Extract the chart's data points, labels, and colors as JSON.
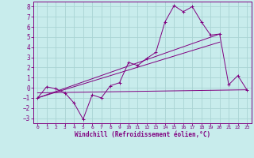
{
  "background_color": "#c8ecec",
  "grid_color": "#aad4d4",
  "line_color": "#800080",
  "text_color": "#800080",
  "xlabel": "Windchill (Refroidissement éolien,°C)",
  "xlim": [
    -0.5,
    23.5
  ],
  "ylim": [
    -3.5,
    8.5
  ],
  "yticks": [
    -3,
    -2,
    -1,
    0,
    1,
    2,
    3,
    4,
    5,
    6,
    7,
    8
  ],
  "xticks": [
    0,
    1,
    2,
    3,
    4,
    5,
    6,
    7,
    8,
    9,
    10,
    11,
    12,
    13,
    14,
    15,
    16,
    17,
    18,
    19,
    20,
    21,
    22,
    23
  ],
  "series": {
    "zigzag": {
      "x": [
        0,
        1,
        2,
        3,
        4,
        5,
        6,
        7,
        8,
        9,
        10,
        11,
        12,
        13,
        14,
        15,
        16,
        17,
        18,
        19,
        20,
        21,
        22,
        23
      ],
      "y": [
        -1.0,
        0.1,
        -0.1,
        -0.5,
        -1.5,
        -3.1,
        -0.7,
        -1.0,
        0.2,
        0.5,
        2.5,
        2.2,
        2.9,
        3.5,
        6.5,
        8.1,
        7.5,
        8.0,
        6.5,
        5.2,
        5.3,
        0.3,
        1.2,
        -0.2
      ]
    },
    "line1": {
      "x": [
        0,
        20
      ],
      "y": [
        -1.0,
        5.3
      ]
    },
    "line2": {
      "x": [
        0,
        20
      ],
      "y": [
        -1.0,
        4.5
      ]
    },
    "line3": {
      "x": [
        0,
        23
      ],
      "y": [
        -0.5,
        -0.2
      ]
    }
  }
}
